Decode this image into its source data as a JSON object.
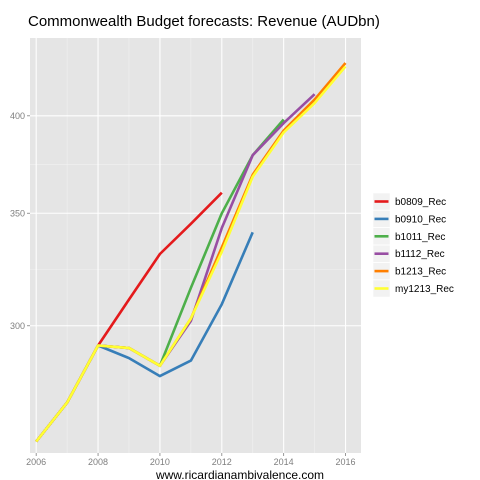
{
  "chart_data": {
    "type": "line",
    "title": "Commonwealth Budget forecasts: Revenue (AUDbn)",
    "xlabel": "www.ricardianambivalence.com",
    "ylabel": "",
    "y_scale": "log",
    "xlim": [
      2005.8,
      2016.5
    ],
    "ylim": [
      252,
      445
    ],
    "x_ticks": [
      2006,
      2008,
      2010,
      2012,
      2014,
      2016
    ],
    "y_ticks": [
      300,
      350,
      400
    ],
    "grid": true,
    "legend_position": "right",
    "series": [
      {
        "name": "b0809_Rec",
        "color": "#E41A1C",
        "x": [
          2006,
          2007,
          2008,
          2009,
          2010,
          2011,
          2012
        ],
        "y": [
          256,
          270,
          292,
          311,
          331,
          345,
          360
        ]
      },
      {
        "name": "b0910_Rec",
        "color": "#377EB8",
        "x": [
          2006,
          2007,
          2008,
          2009,
          2010,
          2011,
          2012,
          2013
        ],
        "y": [
          256,
          270,
          292,
          287,
          280,
          286,
          309,
          341
        ]
      },
      {
        "name": "b1011_Rec",
        "color": "#4DAF4A",
        "x": [
          2006,
          2007,
          2008,
          2009,
          2010,
          2011,
          2012,
          2013,
          2014
        ],
        "y": [
          256,
          270,
          292,
          291,
          284,
          316,
          350,
          379,
          398
        ]
      },
      {
        "name": "b1112_Rec",
        "color": "#984EA3",
        "x": [
          2006,
          2007,
          2008,
          2009,
          2010,
          2011,
          2012,
          2013,
          2014,
          2015
        ],
        "y": [
          256,
          270,
          292,
          291,
          284,
          302,
          343,
          379,
          396,
          412
        ]
      },
      {
        "name": "b1213_Rec",
        "color": "#FF7F00",
        "x": [
          2006,
          2007,
          2008,
          2009,
          2010,
          2011,
          2012,
          2013,
          2014,
          2015,
          2016
        ],
        "y": [
          256,
          270,
          292,
          291,
          284,
          303,
          334,
          369,
          392,
          409,
          430
        ]
      },
      {
        "name": "my1213_Rec",
        "color": "#FFFF33",
        "x": [
          2006,
          2007,
          2008,
          2009,
          2010,
          2011,
          2012,
          2013,
          2014,
          2015,
          2016
        ],
        "y": [
          256,
          270,
          292,
          291,
          284,
          303,
          332,
          368,
          391,
          407,
          428
        ]
      }
    ]
  }
}
